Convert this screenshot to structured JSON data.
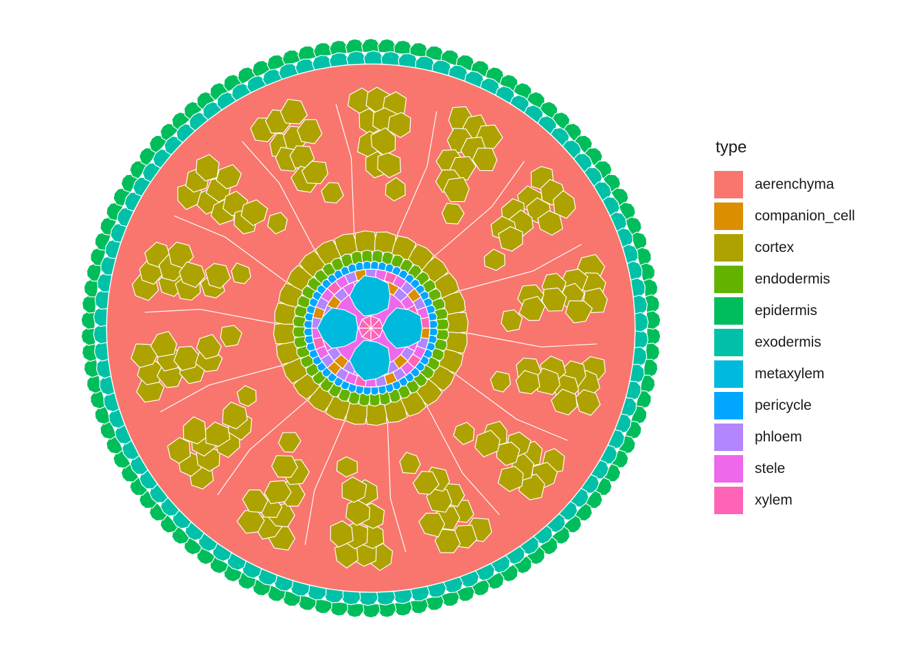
{
  "legend": {
    "title": "type",
    "items": [
      {
        "label": "aerenchyma",
        "color": "#F8766D"
      },
      {
        "label": "companion_cell",
        "color": "#DB8E00"
      },
      {
        "label": "cortex",
        "color": "#AEA200"
      },
      {
        "label": "endodermis",
        "color": "#64B200"
      },
      {
        "label": "epidermis",
        "color": "#00BD5C"
      },
      {
        "label": "exodermis",
        "color": "#00C1A7"
      },
      {
        "label": "metaxylem",
        "color": "#00BADE"
      },
      {
        "label": "pericycle",
        "color": "#00A6FF"
      },
      {
        "label": "phloem",
        "color": "#B385FF"
      },
      {
        "label": "stele",
        "color": "#EF67EB"
      },
      {
        "label": "xylem",
        "color": "#FF63B6"
      }
    ]
  },
  "diagram": {
    "rings": {
      "epidermis_cells": 110,
      "exodermis_cells": 98,
      "pericycle_cells": 52,
      "endodermis_cells": 44,
      "inner_cortex_cells": 28
    },
    "aerenchyma_lobes": 14,
    "metaxylem_vessels": 4
  }
}
